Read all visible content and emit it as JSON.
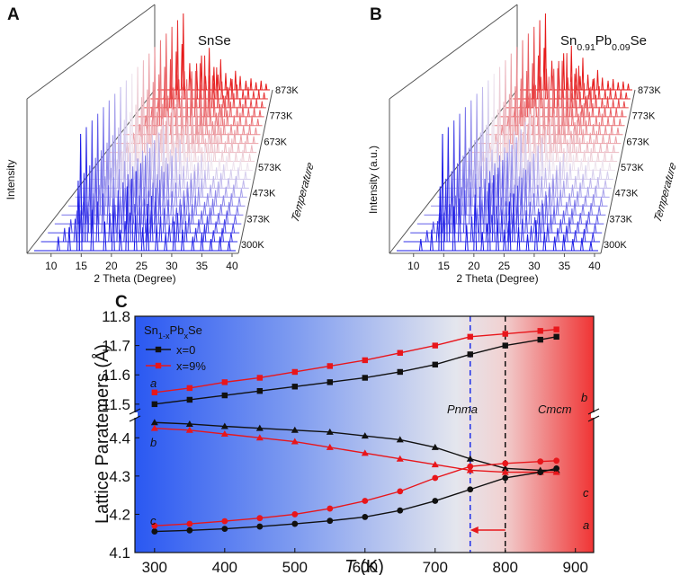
{
  "chart_data": [
    {
      "type": "waterfall",
      "panel_label": "A",
      "title_parts": [
        "SnSe"
      ],
      "ylabel": "Intensity",
      "xlabel": "2 Theta (Degree)",
      "zlabel": "Temperature",
      "xlim": [
        7.2,
        40.6
      ],
      "xticks": [
        10,
        15,
        20,
        25,
        30,
        35,
        40
      ],
      "temperatures": [
        "300K",
        "373K",
        "473K",
        "573K",
        "673K",
        "773K",
        "873K"
      ],
      "colors": [
        "#1a1ae6",
        "#eee4ee",
        "#e61a1a"
      ],
      "peaks": {
        "two_theta": [
          11.2,
          13.0,
          14.5,
          14.9,
          16.8,
          18.9,
          20.3,
          21.5,
          22.6,
          24.0,
          25.2,
          26.0,
          27.5,
          29.0,
          30.4,
          31.8,
          33.5,
          35.0,
          36.5,
          38.0,
          39.5
        ],
        "intensity": [
          12,
          20,
          60,
          100,
          35,
          25,
          45,
          18,
          55,
          30,
          20,
          40,
          22,
          15,
          25,
          18,
          12,
          15,
          10,
          12,
          8
        ]
      }
    },
    {
      "type": "waterfall",
      "panel_label": "B",
      "title_parts": [
        "Sn",
        "0.91",
        "Pb",
        "0.09",
        "Se"
      ],
      "ylabel": "Intensity (a.u.)",
      "xlabel": "2 Theta (Degree)",
      "zlabel": "Temperature",
      "xlim": [
        7.2,
        40.6
      ],
      "xticks": [
        10,
        15,
        20,
        25,
        30,
        35,
        40
      ],
      "temperatures": [
        "300K",
        "373K",
        "473K",
        "573K",
        "673K",
        "773K",
        "873K"
      ],
      "colors": [
        "#1a1ae6",
        "#eee4ee",
        "#e61a1a"
      ],
      "peaks": {
        "two_theta": [
          11.2,
          13.0,
          14.4,
          14.8,
          16.7,
          18.8,
          20.2,
          21.4,
          22.5,
          23.9,
          25.1,
          25.9,
          27.4,
          28.9,
          30.3,
          31.7,
          33.4,
          34.9,
          36.4,
          37.9,
          39.4
        ],
        "intensity": [
          10,
          18,
          55,
          100,
          38,
          22,
          48,
          16,
          58,
          28,
          18,
          42,
          20,
          14,
          26,
          16,
          12,
          14,
          10,
          11,
          8
        ]
      }
    },
    {
      "type": "line",
      "panel_label": "C",
      "legend_title_parts": [
        "Sn",
        "1-x",
        "Pb",
        "x",
        "Se"
      ],
      "xlabel_parts": [
        "T",
        "(K)"
      ],
      "ylabel": "Lattice Paratemers (Å)",
      "x": [
        300,
        350,
        400,
        450,
        500,
        550,
        600,
        650,
        700,
        750,
        800,
        850,
        873
      ],
      "xlim": [
        272,
        926
      ],
      "xticks": [
        300,
        400,
        500,
        600,
        700,
        800,
        900
      ],
      "ylim": [
        4.1,
        4.45
      ],
      "yticks": [
        4.1,
        4.2,
        4.3,
        4.4
      ],
      "y2lim": [
        11.475,
        11.8
      ],
      "y2ticks": [
        11.5,
        11.6,
        11.7,
        11.8
      ],
      "series": [
        {
          "name": "x=0",
          "color": "#111111",
          "marker": "square",
          "axis": "y2",
          "values": [
            11.5,
            11.515,
            11.53,
            11.545,
            11.56,
            11.575,
            11.59,
            11.61,
            11.635,
            11.67,
            11.7,
            11.72,
            11.73
          ]
        },
        {
          "name": "x=9%",
          "color": "#e8161b",
          "marker": "square",
          "axis": "y2",
          "values": [
            11.54,
            11.555,
            11.575,
            11.59,
            11.61,
            11.63,
            11.65,
            11.675,
            11.7,
            11.73,
            11.74,
            11.75,
            11.755
          ]
        },
        {
          "color": "#111111",
          "marker": "triangle",
          "values": [
            4.44,
            4.436,
            4.43,
            4.425,
            4.42,
            4.415,
            4.405,
            4.395,
            4.375,
            4.345,
            4.32,
            4.315,
            4.315
          ]
        },
        {
          "color": "#e8161b",
          "marker": "triangle",
          "values": [
            4.425,
            4.42,
            4.41,
            4.4,
            4.39,
            4.375,
            4.36,
            4.345,
            4.33,
            4.315,
            4.31,
            4.31,
            4.31
          ]
        },
        {
          "color": "#111111",
          "marker": "circle",
          "values": [
            4.155,
            4.158,
            4.162,
            4.168,
            4.175,
            4.183,
            4.193,
            4.21,
            4.235,
            4.265,
            4.295,
            4.31,
            4.32
          ]
        },
        {
          "color": "#e8161b",
          "marker": "circle",
          "values": [
            4.17,
            4.175,
            4.182,
            4.19,
            4.2,
            4.215,
            4.235,
            4.26,
            4.295,
            4.325,
            4.333,
            4.338,
            4.34
          ]
        }
      ],
      "vlines": [
        {
          "x": 750,
          "color": "#1f2fe8"
        },
        {
          "x": 800,
          "color": "#111111"
        }
      ],
      "annotations": [
        "a",
        "b",
        "b",
        "c",
        "c",
        "a",
        "Pnma",
        "Cmcm"
      ]
    }
  ]
}
